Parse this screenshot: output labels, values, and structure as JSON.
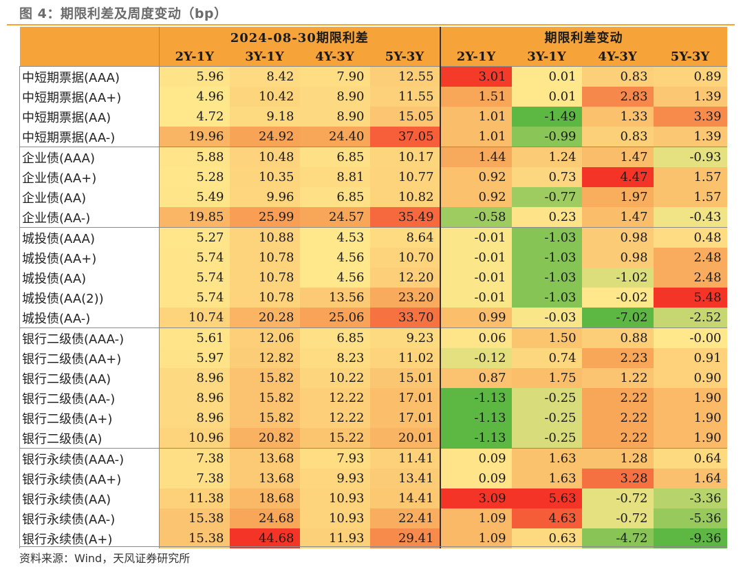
{
  "title": "图 4：期限利差及周度变动（bp）",
  "table": {
    "group_headers": [
      "2024-08-30期限利差",
      "期限利差变动"
    ],
    "columns": [
      "2Y-1Y",
      "3Y-1Y",
      "4Y-3Y",
      "5Y-3Y",
      "2Y-1Y",
      "3Y-1Y",
      "4Y-3Y",
      "5Y-3Y"
    ],
    "rows": [
      {
        "name": "中短期票据(AAA)",
        "spread": [
          "5.96",
          "8.42",
          "7.90",
          "12.55"
        ],
        "change": [
          "3.01",
          "0.01",
          "0.83",
          "0.89"
        ]
      },
      {
        "name": "中短期票据(AA+)",
        "spread": [
          "4.96",
          "10.42",
          "8.90",
          "11.55"
        ],
        "change": [
          "1.51",
          "0.01",
          "2.83",
          "1.39"
        ]
      },
      {
        "name": "中短期票据(AA)",
        "spread": [
          "4.72",
          "9.18",
          "8.90",
          "15.05"
        ],
        "change": [
          "1.01",
          "-1.49",
          "1.33",
          "3.39"
        ]
      },
      {
        "name": "中短期票据(AA-)",
        "spread": [
          "19.96",
          "24.92",
          "24.40",
          "37.05"
        ],
        "change": [
          "1.01",
          "-0.99",
          "0.83",
          "1.39"
        ]
      },
      {
        "name": "企业债(AAA)",
        "spread": [
          "5.88",
          "10.48",
          "6.85",
          "10.17"
        ],
        "change": [
          "1.44",
          "1.24",
          "1.47",
          "-0.93"
        ]
      },
      {
        "name": "企业债(AA+)",
        "spread": [
          "5.28",
          "10.35",
          "8.81",
          "10.77"
        ],
        "change": [
          "0.92",
          "0.73",
          "4.47",
          "1.57"
        ]
      },
      {
        "name": "企业债(AA)",
        "spread": [
          "5.49",
          "9.96",
          "6.85",
          "10.82"
        ],
        "change": [
          "0.92",
          "-0.77",
          "1.97",
          "1.57"
        ]
      },
      {
        "name": "企业债(AA-)",
        "spread": [
          "19.85",
          "25.99",
          "24.57",
          "35.49"
        ],
        "change": [
          "-0.58",
          "0.23",
          "1.47",
          "-0.43"
        ]
      },
      {
        "name": "城投债(AAA)",
        "spread": [
          "5.27",
          "10.88",
          "4.53",
          "8.64"
        ],
        "change": [
          "-0.01",
          "-1.03",
          "0.98",
          "0.48"
        ]
      },
      {
        "name": "城投债(AA+)",
        "spread": [
          "5.74",
          "10.78",
          "4.56",
          "10.70"
        ],
        "change": [
          "-0.01",
          "-1.03",
          "0.98",
          "2.48"
        ]
      },
      {
        "name": "城投债(AA)",
        "spread": [
          "5.74",
          "10.78",
          "4.56",
          "12.20"
        ],
        "change": [
          "-0.01",
          "-1.03",
          "-1.02",
          "2.48"
        ]
      },
      {
        "name": "城投债(AA(2))",
        "spread": [
          "5.74",
          "10.78",
          "13.56",
          "23.20"
        ],
        "change": [
          "-0.01",
          "-1.03",
          "-0.02",
          "5.48"
        ]
      },
      {
        "name": "城投债(AA-)",
        "spread": [
          "10.74",
          "20.28",
          "25.06",
          "33.70"
        ],
        "change": [
          "0.99",
          "-0.03",
          "-7.02",
          "-2.52"
        ]
      },
      {
        "name": "银行二级债(AAA-)",
        "spread": [
          "5.61",
          "12.06",
          "6.85",
          "9.23"
        ],
        "change": [
          "0.06",
          "1.50",
          "0.88",
          "-0.00"
        ]
      },
      {
        "name": "银行二级债(AA+)",
        "spread": [
          "5.97",
          "12.82",
          "8.23",
          "11.02"
        ],
        "change": [
          "-0.12",
          "0.74",
          "2.23",
          "0.91"
        ]
      },
      {
        "name": "银行二级债(AA)",
        "spread": [
          "8.96",
          "15.82",
          "10.22",
          "15.01"
        ],
        "change": [
          "0.87",
          "1.75",
          "1.22",
          "0.90"
        ]
      },
      {
        "name": "银行二级债(AA-)",
        "spread": [
          "8.96",
          "15.82",
          "12.22",
          "17.01"
        ],
        "change": [
          "-1.13",
          "-0.25",
          "2.22",
          "1.90"
        ]
      },
      {
        "name": "银行二级债(A+)",
        "spread": [
          "8.96",
          "15.82",
          "12.22",
          "17.01"
        ],
        "change": [
          "-1.13",
          "-0.25",
          "2.22",
          "1.90"
        ]
      },
      {
        "name": "银行二级债(A)",
        "spread": [
          "10.96",
          "20.82",
          "15.22",
          "20.01"
        ],
        "change": [
          "-1.13",
          "-0.25",
          "2.22",
          "1.90"
        ]
      },
      {
        "name": "银行永续债(AAA-)",
        "spread": [
          "7.38",
          "13.68",
          "7.93",
          "11.41"
        ],
        "change": [
          "0.09",
          "1.63",
          "1.28",
          "0.64"
        ]
      },
      {
        "name": "银行永续债(AA+)",
        "spread": [
          "7.38",
          "13.68",
          "9.93",
          "13.41"
        ],
        "change": [
          "0.09",
          "1.63",
          "3.28",
          "1.64"
        ]
      },
      {
        "name": "银行永续债(AA)",
        "spread": [
          "11.38",
          "18.68",
          "10.93",
          "14.41"
        ],
        "change": [
          "3.09",
          "5.63",
          "-0.72",
          "-3.36"
        ]
      },
      {
        "name": "银行永续债(AA-)",
        "spread": [
          "15.38",
          "24.68",
          "10.93",
          "22.41"
        ],
        "change": [
          "1.09",
          "4.63",
          "-0.72",
          "-5.36"
        ]
      },
      {
        "name": "银行永续债(A+)",
        "spread": [
          "15.38",
          "44.68",
          "11.93",
          "29.41"
        ],
        "change": [
          "1.09",
          "0.63",
          "-4.72",
          "-9.36"
        ]
      }
    ]
  },
  "source": "资料来源：Wind，天风证券研究所"
}
